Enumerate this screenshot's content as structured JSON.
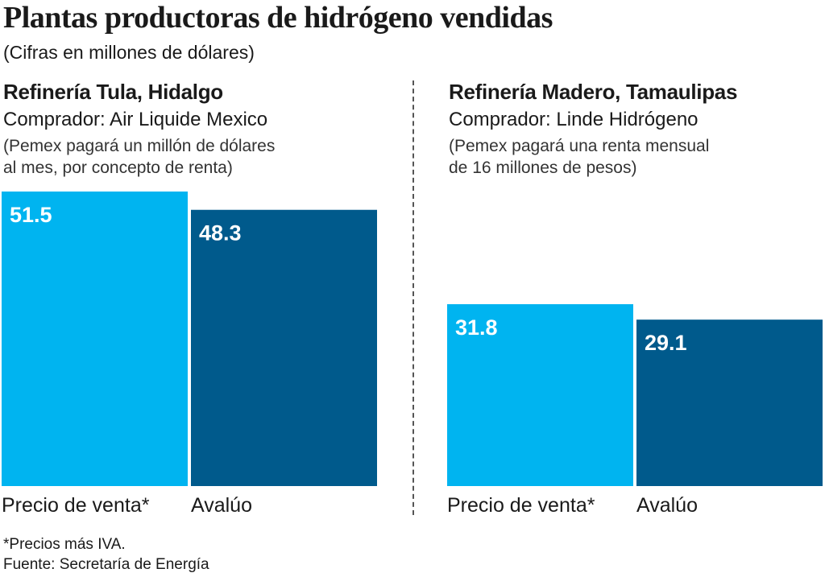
{
  "header": {
    "title": "Plantas productoras de hidrógeno vendidas",
    "subtitle": "(Cifras en millones de dólares)"
  },
  "panels": [
    {
      "title": "Refinería Tula, Hidalgo",
      "buyer": "Comprador: Air Liquide Mexico",
      "note_lines": [
        "(Pemex pagará un millón de dólares",
        "al mes, por concepto de renta)"
      ]
    },
    {
      "title": "Refinería Madero, Tamaulipas",
      "buyer": "Comprador: Linde Hidrógeno",
      "note_lines": [
        "(Pemex pagará una renta mensual",
        "de 16 millones de pesos)"
      ]
    }
  ],
  "chart_data": {
    "type": "bar",
    "categories": [
      "Precio de venta*",
      "Avalúo"
    ],
    "groups": [
      {
        "panel": "Refinería Tula, Hidalgo",
        "values": [
          51.5,
          48.3
        ],
        "labels": [
          "51.5",
          "48.3"
        ]
      },
      {
        "panel": "Refinería Madero, Tamaulipas",
        "values": [
          31.8,
          29.1
        ],
        "labels": [
          "31.8",
          "29.1"
        ]
      }
    ],
    "colors": [
      "#00b4f0",
      "#005a8c"
    ],
    "ylim": [
      0,
      51.5
    ]
  },
  "footer": {
    "note": "*Precios más IVA.",
    "source": "Fuente: Secretaría de Energía"
  }
}
